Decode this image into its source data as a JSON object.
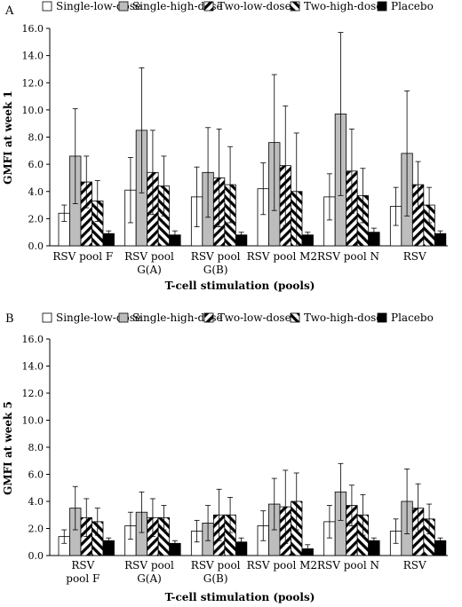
{
  "chart_data": [
    {
      "type": "bar",
      "panel_label": "A",
      "ylabel": "GMFI at week 1",
      "xlabel": "T-cell stimulation (pools)",
      "ylim": [
        0,
        16
      ],
      "yticks": [
        "0.0",
        "2.0",
        "4.0",
        "6.0",
        "8.0",
        "10.0",
        "12.0",
        "14.0",
        "16.0"
      ],
      "legend_position": "top",
      "categories": [
        [
          "RSV pool F"
        ],
        [
          "RSV pool",
          "G(A)"
        ],
        [
          "RSV pool",
          "G(B)"
        ],
        [
          "RSV pool M2"
        ],
        [
          "RSV pool N"
        ],
        [
          "RSV"
        ]
      ],
      "series": [
        {
          "name": "Single-low-dose",
          "fill": "white",
          "values": [
            2.4,
            4.1,
            3.6,
            4.2,
            3.6,
            2.9
          ],
          "err": [
            0.6,
            2.4,
            2.2,
            1.9,
            1.7,
            1.4
          ]
        },
        {
          "name": "Single-high-dose",
          "fill": "gray",
          "values": [
            6.6,
            8.5,
            5.4,
            7.6,
            9.7,
            6.8
          ],
          "err": [
            3.5,
            4.6,
            3.3,
            5.0,
            6.0,
            4.6
          ]
        },
        {
          "name": "Two-low-dose",
          "fill": "hatch-right",
          "values": [
            4.7,
            5.4,
            5.0,
            5.9,
            5.5,
            4.5
          ],
          "err": [
            1.9,
            3.1,
            3.6,
            4.4,
            3.1,
            1.7
          ]
        },
        {
          "name": "Two-high-dose",
          "fill": "hatch-left",
          "values": [
            3.3,
            4.4,
            4.5,
            4.0,
            3.7,
            3.0
          ],
          "err": [
            1.5,
            2.2,
            2.8,
            4.3,
            2.0,
            1.3
          ]
        },
        {
          "name": "Placebo",
          "fill": "black",
          "values": [
            0.9,
            0.8,
            0.8,
            0.8,
            1.0,
            0.9
          ],
          "err": [
            0.2,
            0.3,
            0.2,
            0.2,
            0.3,
            0.2
          ]
        }
      ]
    },
    {
      "type": "bar",
      "panel_label": "B",
      "ylabel": "GMFI at week 5",
      "xlabel": "T-cell stimulation (pools)",
      "ylim": [
        0,
        16
      ],
      "yticks": [
        "0.0",
        "2.0",
        "4.0",
        "6.0",
        "8.0",
        "10.0",
        "12.0",
        "14.0",
        "16.0"
      ],
      "legend_position": "top",
      "categories": [
        [
          "RSV",
          "pool F"
        ],
        [
          "RSV pool",
          "G(A)"
        ],
        [
          "RSV pool",
          "G(B)"
        ],
        [
          "RSV pool M2"
        ],
        [
          "RSV pool N"
        ],
        [
          "RSV"
        ]
      ],
      "series": [
        {
          "name": "Single-low-dose",
          "fill": "white",
          "values": [
            1.4,
            2.2,
            1.8,
            2.2,
            2.5,
            1.8
          ],
          "err": [
            0.5,
            1.0,
            0.8,
            1.1,
            1.2,
            0.9
          ]
        },
        {
          "name": "Single-high-dose",
          "fill": "gray",
          "values": [
            3.5,
            3.2,
            2.4,
            3.8,
            4.7,
            4.0
          ],
          "err": [
            1.6,
            1.5,
            1.3,
            1.9,
            2.1,
            2.4
          ]
        },
        {
          "name": "Two-low-dose",
          "fill": "hatch-right",
          "values": [
            2.8,
            2.8,
            3.0,
            3.6,
            3.7,
            3.5
          ],
          "err": [
            1.4,
            1.4,
            1.9,
            2.7,
            1.5,
            1.8
          ]
        },
        {
          "name": "Two-high-dose",
          "fill": "hatch-left",
          "values": [
            2.5,
            2.8,
            3.0,
            4.0,
            3.0,
            2.7
          ],
          "err": [
            1.0,
            0.9,
            1.3,
            2.1,
            1.5,
            1.1
          ]
        },
        {
          "name": "Placebo",
          "fill": "black",
          "values": [
            1.1,
            0.9,
            1.0,
            0.5,
            1.1,
            1.1
          ],
          "err": [
            0.2,
            0.2,
            0.3,
            0.3,
            0.2,
            0.2
          ]
        }
      ]
    }
  ]
}
